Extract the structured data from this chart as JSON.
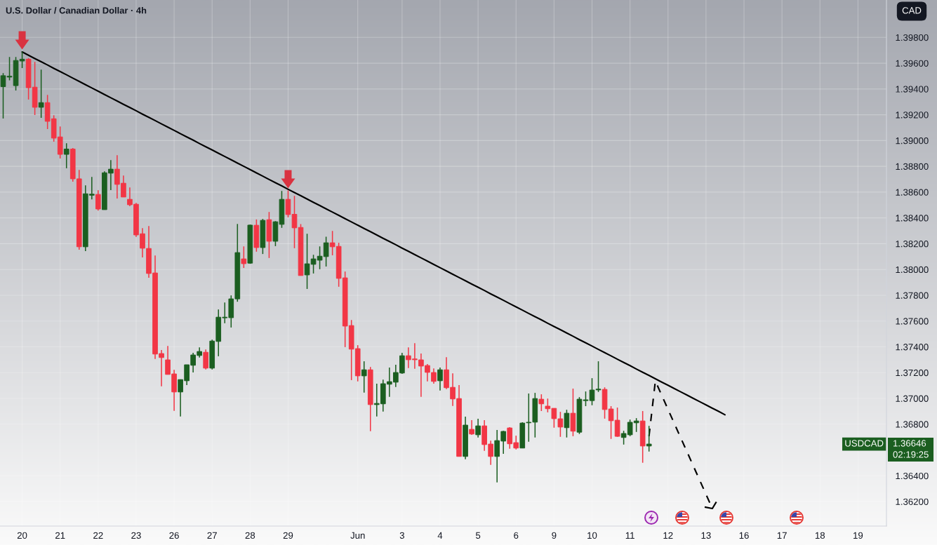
{
  "chart_data": {
    "type": "candlestick",
    "title": "U.S. Dollar / Canadian Dollar · 4h",
    "ylabel": "CAD",
    "categories": [
      null,
      null,
      null,
      "20",
      null,
      null,
      null,
      null,
      null,
      "21",
      null,
      null,
      null,
      null,
      null,
      "22",
      null,
      null,
      null,
      null,
      null,
      "23",
      null,
      null,
      null,
      null,
      null,
      "26",
      null,
      null,
      null,
      null,
      null,
      "27",
      null,
      null,
      null,
      null,
      null,
      "28",
      null,
      null,
      null,
      null,
      null,
      "29",
      null,
      null,
      null,
      null,
      null,
      null,
      null,
      null,
      null,
      null,
      "Jun",
      null,
      null,
      null,
      null,
      null,
      null,
      "3",
      null,
      null,
      null,
      null,
      null,
      "4",
      null,
      null,
      null,
      null,
      null,
      "5",
      null,
      null,
      null,
      null,
      null,
      "6",
      null,
      null,
      null,
      null,
      null,
      "9",
      null,
      null,
      null,
      null,
      null,
      "10",
      null,
      null,
      null,
      null,
      null,
      "11",
      null,
      null,
      null,
      null,
      null,
      "12",
      null,
      null,
      null,
      null,
      null,
      "13",
      null,
      null,
      null,
      null,
      null,
      "16",
      null,
      null,
      null,
      null,
      null,
      "17",
      null,
      null,
      null,
      null,
      null,
      "18",
      null,
      null,
      null,
      null,
      null,
      "19",
      null,
      null,
      null,
      null
    ],
    "ohlc": [
      [
        1.39418,
        1.39523,
        1.39171,
        1.39503
      ],
      [
        1.39492,
        1.39648,
        1.39467,
        1.39499
      ],
      [
        1.39426,
        1.39648,
        1.39388,
        1.39621
      ],
      [
        1.39617,
        1.3969,
        1.39562,
        1.39631
      ],
      [
        1.39631,
        1.39639,
        1.39318,
        1.3941
      ],
      [
        1.39414,
        1.3961,
        1.39198,
        1.39258
      ],
      [
        1.39258,
        1.3955,
        1.39176,
        1.39294
      ],
      [
        1.39294,
        1.39354,
        1.39089,
        1.39149
      ],
      [
        1.39169,
        1.39196,
        1.38991,
        1.39019
      ],
      [
        1.39028,
        1.39109,
        1.38861,
        1.38893
      ],
      [
        1.38893,
        1.38979,
        1.38785,
        1.38934
      ],
      [
        1.38934,
        1.38942,
        1.38681,
        1.38703
      ],
      [
        1.38703,
        1.38772,
        1.38154,
        1.38176
      ],
      [
        1.38176,
        1.38653,
        1.38143,
        1.38587
      ],
      [
        1.38576,
        1.38718,
        1.38544,
        1.38584
      ],
      [
        1.38582,
        1.38615,
        1.38457,
        1.38469
      ],
      [
        1.38464,
        1.38761,
        1.38464,
        1.3875
      ],
      [
        1.38747,
        1.38848,
        1.38616,
        1.38778
      ],
      [
        1.38778,
        1.38886,
        1.38551,
        1.3866
      ],
      [
        1.38669,
        1.38729,
        1.38562,
        1.38562
      ],
      [
        1.38544,
        1.38636,
        1.38491,
        1.38502
      ],
      [
        1.38506,
        1.38517,
        1.38252,
        1.38268
      ],
      [
        1.38277,
        1.38321,
        1.38094,
        1.38165
      ],
      [
        1.38163,
        1.38337,
        1.37936,
        1.37969
      ],
      [
        1.37973,
        1.38109,
        1.37306,
        1.37344
      ],
      [
        1.37348,
        1.37375,
        1.37094,
        1.37317
      ],
      [
        1.37299,
        1.37407,
        1.37186,
        1.37186
      ],
      [
        1.3719,
        1.37222,
        1.36903,
        1.3705
      ],
      [
        1.3705,
        1.37146,
        1.3686,
        1.37146
      ],
      [
        1.37137,
        1.37261,
        1.37104,
        1.37261
      ],
      [
        1.37257,
        1.37353,
        1.37202,
        1.37337
      ],
      [
        1.37333,
        1.37396,
        1.37317,
        1.37364
      ],
      [
        1.37358,
        1.3738,
        1.37224,
        1.37235
      ],
      [
        1.37235,
        1.37456,
        1.37224,
        1.37445
      ],
      [
        1.37442,
        1.3769,
        1.37327,
        1.3763
      ],
      [
        1.37625,
        1.37744,
        1.37583,
        1.3763
      ],
      [
        1.37626,
        1.37799,
        1.3755,
        1.37772
      ],
      [
        1.37772,
        1.38353,
        1.3775,
        1.38131
      ],
      [
        1.38082,
        1.38179,
        1.38012,
        1.38045
      ],
      [
        1.38049,
        1.38348,
        1.38044,
        1.38344
      ],
      [
        1.38343,
        1.38388,
        1.38138,
        1.3817
      ],
      [
        1.3817,
        1.38392,
        1.3812,
        1.38381
      ],
      [
        1.38386,
        1.38446,
        1.38089,
        1.38219
      ],
      [
        1.38219,
        1.38375,
        1.38181,
        1.3837
      ],
      [
        1.3835,
        1.38609,
        1.38323,
        1.38544
      ],
      [
        1.38544,
        1.38613,
        1.38404,
        1.38426
      ],
      [
        1.38428,
        1.38571,
        1.38165,
        1.38323
      ],
      [
        1.38326,
        1.38352,
        1.37953,
        1.37953
      ],
      [
        1.37958,
        1.38277,
        1.37849,
        1.38044
      ],
      [
        1.3804,
        1.38114,
        1.37969,
        1.38082
      ],
      [
        1.38072,
        1.38179,
        1.38002,
        1.38103
      ],
      [
        1.381,
        1.38254,
        1.38023,
        1.38207
      ],
      [
        1.38207,
        1.38299,
        1.3811,
        1.38176
      ],
      [
        1.38179,
        1.38207,
        1.37866,
        1.37931
      ],
      [
        1.37935,
        1.37984,
        1.37398,
        1.37561
      ],
      [
        1.37565,
        1.37608,
        1.37142,
        1.37382
      ],
      [
        1.37386,
        1.37413,
        1.37132,
        1.37175
      ],
      [
        1.37175,
        1.37288,
        1.37045,
        1.37222
      ],
      [
        1.37222,
        1.37244,
        1.36746,
        1.36952
      ],
      [
        1.36952,
        1.37114,
        1.3686,
        1.36961
      ],
      [
        1.36958,
        1.37146,
        1.36898,
        1.37114
      ],
      [
        1.3711,
        1.37239,
        1.37012,
        1.3713
      ],
      [
        1.37126,
        1.37261,
        1.37088,
        1.37201
      ],
      [
        1.37197,
        1.37353,
        1.37191,
        1.37331
      ],
      [
        1.37331,
        1.37396,
        1.37235,
        1.373
      ],
      [
        1.37306,
        1.37429,
        1.3723,
        1.373
      ],
      [
        1.37299,
        1.37348,
        1.37012,
        1.37251
      ],
      [
        1.37255,
        1.37266,
        1.37132,
        1.37202
      ],
      [
        1.37201,
        1.37233,
        1.37115,
        1.37132
      ],
      [
        1.37137,
        1.37239,
        1.37061,
        1.37222
      ],
      [
        1.37222,
        1.3732,
        1.37072,
        1.37083
      ],
      [
        1.37086,
        1.37195,
        1.36941,
        1.36996
      ],
      [
        1.36999,
        1.37103,
        1.3655,
        1.3655
      ],
      [
        1.3655,
        1.36858,
        1.36528,
        1.36793
      ],
      [
        1.3676,
        1.36831,
        1.36717,
        1.36724
      ],
      [
        1.36718,
        1.36842,
        1.36697,
        1.36787
      ],
      [
        1.36787,
        1.36831,
        1.36593,
        1.36642
      ],
      [
        1.36646,
        1.36673,
        1.36484,
        1.3655
      ],
      [
        1.3655,
        1.36755,
        1.36349,
        1.36673
      ],
      [
        1.36669,
        1.36749,
        1.36571,
        1.36744
      ],
      [
        1.36771,
        1.36777,
        1.3661,
        1.36648
      ],
      [
        1.36657,
        1.36711,
        1.36604,
        1.36615
      ],
      [
        1.36615,
        1.36815,
        1.36615,
        1.36809
      ],
      [
        1.36811,
        1.37038,
        1.36664,
        1.36815
      ],
      [
        1.36816,
        1.37043,
        1.36697,
        1.36999
      ],
      [
        1.36994,
        1.37032,
        1.36902,
        1.36958
      ],
      [
        1.3694,
        1.36999,
        1.36892,
        1.3692
      ],
      [
        1.36923,
        1.36923,
        1.36773,
        1.36843
      ],
      [
        1.36842,
        1.36896,
        1.36702,
        1.36778
      ],
      [
        1.36773,
        1.36912,
        1.36697,
        1.36885
      ],
      [
        1.36885,
        1.37076,
        1.36707,
        1.36746
      ],
      [
        1.36738,
        1.3701,
        1.36724,
        1.36994
      ],
      [
        1.36983,
        1.37054,
        1.3694,
        1.36989
      ],
      [
        1.36983,
        1.37157,
        1.36947,
        1.37065
      ],
      [
        1.37066,
        1.37288,
        1.3705,
        1.37072
      ],
      [
        1.3707,
        1.37086,
        1.36843,
        1.36914
      ],
      [
        1.36918,
        1.3694,
        1.36686,
        1.36827
      ],
      [
        1.36831,
        1.36929,
        1.36702,
        1.36706
      ],
      [
        1.36697,
        1.36749,
        1.36642,
        1.36728
      ],
      [
        1.36718,
        1.36836,
        1.36707,
        1.36815
      ],
      [
        1.36811,
        1.36847,
        1.3674,
        1.36825
      ],
      [
        1.36825,
        1.36902,
        1.36501,
        1.36631
      ],
      [
        1.36631,
        1.36787,
        1.36588,
        1.36646
      ],
      null,
      null,
      null,
      null,
      null,
      null,
      null,
      null,
      null,
      null,
      null,
      null,
      null,
      null,
      null,
      null,
      null,
      null,
      null,
      null,
      null,
      null,
      null,
      null,
      null,
      null,
      null,
      null,
      null,
      null,
      null,
      null,
      null,
      null,
      null,
      null,
      null
    ],
    "colors": [
      "#1b5e20",
      "#1b5e20",
      "#1b5e20",
      "#1b5e20",
      "#f23645",
      "#f23645",
      "#1b5e20",
      "#f23645",
      "#f23645",
      "#f23645",
      "#1b5e20",
      "#f23645",
      "#f23645",
      "#1b5e20",
      "#1b5e20",
      "#f23645",
      "#1b5e20",
      "#1b5e20",
      "#f23645",
      "#f23645",
      "#f23645",
      "#f23645",
      "#f23645",
      "#f23645",
      "#f23645",
      "#f23645",
      "#f23645",
      "#f23645",
      "#1b5e20",
      "#1b5e20",
      "#1b5e20",
      "#1b5e20",
      "#f23645",
      "#1b5e20",
      "#1b5e20",
      "#1b5e20",
      "#1b5e20",
      "#1b5e20",
      "#f23645",
      "#1b5e20",
      "#f23645",
      "#1b5e20",
      "#f23645",
      "#1b5e20",
      "#1b5e20",
      "#f23645",
      "#f23645",
      "#f23645",
      "#1b5e20",
      "#1b5e20",
      "#1b5e20",
      "#1b5e20",
      "#f23645",
      "#f23645",
      "#f23645",
      "#f23645",
      "#f23645",
      "#1b5e20",
      "#f23645",
      "#1b5e20",
      "#1b5e20",
      "#1b5e20",
      "#1b5e20",
      "#1b5e20",
      "#f23645",
      "#f23645",
      "#f23645",
      "#f23645",
      "#f23645",
      "#1b5e20",
      "#f23645",
      "#f23645",
      "#f23645",
      "#1b5e20",
      "#f23645",
      "#1b5e20",
      "#f23645",
      "#f23645",
      "#1b5e20",
      "#1b5e20",
      "#f23645",
      "#f23645",
      "#1b5e20",
      "#1b5e20",
      "#1b5e20",
      "#f23645",
      "#f23645",
      "#f23645",
      "#f23645",
      "#1b5e20",
      "#f23645",
      "#1b5e20",
      "#1b5e20",
      "#1b5e20",
      "#1b5e20",
      "#f23645",
      "#f23645",
      "#f23645",
      "#1b5e20",
      "#1b5e20",
      "#1b5e20",
      "#f23645",
      "#1b5e20",
      null,
      null,
      null,
      null,
      null,
      null,
      null,
      null,
      null,
      null,
      null,
      null,
      null,
      null,
      null,
      null,
      null,
      null,
      null,
      null,
      null,
      null,
      null,
      null,
      null,
      null,
      null,
      null,
      null,
      null,
      null,
      null,
      null,
      null,
      null,
      null,
      null
    ],
    "series": [
      {
        "type": "line",
        "color": "#000000",
        "values": [
          null,
          null,
          null,
          1.39687,
          1.39662,
          1.39636,
          1.39611,
          1.39586,
          1.3956,
          1.39535,
          1.3951,
          1.39484,
          1.39459,
          1.39433,
          1.39408,
          1.39383,
          1.39357,
          1.39332,
          1.39307,
          1.39281,
          1.39256,
          1.39231,
          1.39205,
          1.3918,
          1.39155,
          1.39129,
          1.39104,
          1.39079,
          1.39053,
          1.39028,
          1.39003,
          1.38977,
          1.38952,
          1.38927,
          1.38901,
          1.38876,
          1.38851,
          1.38825,
          1.388,
          1.38775,
          1.38749,
          1.38724,
          1.38698,
          1.38673,
          1.38648,
          1.38622,
          1.38597,
          1.38572,
          1.38546,
          1.38521,
          1.38496,
          1.3847,
          1.38445,
          1.3842,
          1.38394,
          1.38369,
          1.38344,
          1.38318,
          1.38293,
          1.38268,
          1.38242,
          1.38217,
          1.38192,
          1.38166,
          1.38141,
          1.38115,
          1.3809,
          1.38065,
          1.38039,
          1.38014,
          1.37989,
          1.37963,
          1.37938,
          1.37913,
          1.37887,
          1.37862,
          1.37837,
          1.37811,
          1.37786,
          1.37761,
          1.37735,
          1.3771,
          1.37685,
          1.37659,
          1.37634,
          1.37609,
          1.37583,
          1.37558,
          1.37533,
          1.37507,
          1.37482,
          1.37456,
          1.37431,
          1.37406,
          1.3738,
          1.37355,
          1.3733,
          1.37304,
          1.37279,
          1.37254,
          1.37228,
          1.37203,
          1.37178,
          1.37152,
          1.37127,
          1.37102,
          1.37076,
          1.37051,
          1.37026,
          1.37,
          1.36975,
          1.3695,
          1.36924,
          1.36899,
          1.36873,
          null,
          null,
          null,
          null,
          null,
          null,
          null,
          null,
          null,
          null,
          null,
          null,
          null,
          null,
          null,
          null,
          null,
          null,
          null,
          null,
          null,
          null,
          null,
          null,
          null
        ]
      },
      {
        "type": "line",
        "color": "#000000",
        "line_style": "dashed",
        "values": [
          null,
          null,
          null,
          null,
          null,
          null,
          null,
          null,
          null,
          null,
          null,
          null,
          null,
          null,
          null,
          null,
          null,
          null,
          null,
          null,
          null,
          null,
          null,
          null,
          null,
          null,
          null,
          null,
          null,
          null,
          null,
          null,
          null,
          null,
          null,
          null,
          null,
          null,
          null,
          null,
          null,
          null,
          null,
          null,
          null,
          null,
          null,
          null,
          null,
          null,
          null,
          null,
          null,
          null,
          null,
          null,
          null,
          null,
          null,
          null,
          null,
          null,
          null,
          null,
          null,
          null,
          null,
          null,
          null,
          null,
          null,
          null,
          null,
          null,
          null,
          null,
          null,
          null,
          null,
          null,
          null,
          null,
          null,
          null,
          null,
          null,
          null,
          null,
          null,
          null,
          null,
          null,
          null,
          null,
          null,
          null,
          null,
          null,
          null,
          null,
          null,
          null,
          1.36707,
          1.37135,
          1.37025,
          1.36915,
          1.36805,
          1.36695,
          1.36586,
          1.36476,
          1.36366,
          1.36256,
          1.36146,
          null,
          null,
          null,
          null,
          null,
          null,
          null,
          null,
          null,
          null,
          null,
          null,
          null,
          null,
          null,
          null,
          null,
          null,
          null,
          null,
          null,
          null,
          null,
          null,
          null,
          null,
          null
        ]
      }
    ],
    "ylim": [
      1.3601,
      1.4009
    ],
    "yticks": [
      {
        "value": 1.362,
        "label": "1.36200"
      },
      {
        "value": 1.364,
        "label": "1.36400"
      },
      {
        "value": 1.368,
        "label": "1.36800"
      },
      {
        "value": 1.37,
        "label": "1.37000"
      },
      {
        "value": 1.372,
        "label": "1.37200"
      },
      {
        "value": 1.374,
        "label": "1.37400"
      },
      {
        "value": 1.376,
        "label": "1.37600"
      },
      {
        "value": 1.378,
        "label": "1.37800"
      },
      {
        "value": 1.38,
        "label": "1.38000"
      },
      {
        "value": 1.382,
        "label": "1.38200"
      },
      {
        "value": 1.384,
        "label": "1.38400"
      },
      {
        "value": 1.386,
        "label": "1.38600"
      },
      {
        "value": 1.388,
        "label": "1.38800"
      },
      {
        "value": 1.39,
        "label": "1.39000"
      },
      {
        "value": 1.392,
        "label": "1.39200"
      },
      {
        "value": 1.394,
        "label": "1.39400"
      },
      {
        "value": 1.396,
        "label": "1.39600"
      },
      {
        "value": 1.398,
        "label": "1.39800"
      }
    ],
    "grid": true,
    "annotations": [
      "USDCAD",
      "1.36646",
      "02:19:25"
    ]
  }
}
